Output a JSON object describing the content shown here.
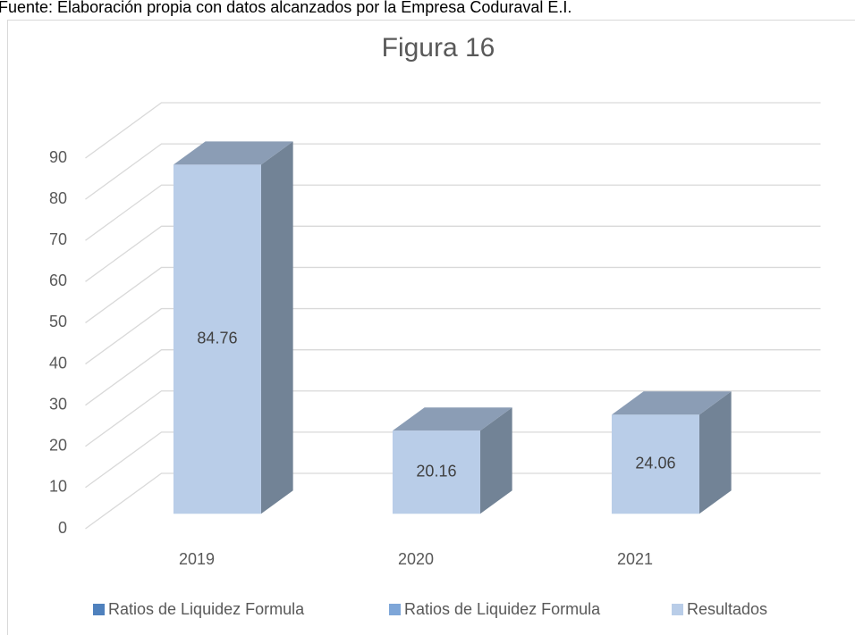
{
  "chart_data": {
    "type": "bar3d",
    "source": "Fuente: Elaboración propia con datos alcanzados por la Empresa Coduraval E.I.",
    "title": "Figura 16",
    "categories": [
      "2019",
      "2020",
      "2021"
    ],
    "series": [
      {
        "name": "Ratios de Liquidez Formula",
        "color": "#4f81bd",
        "values": [
          null,
          null,
          null
        ]
      },
      {
        "name": "Ratios de Liquidez Formula",
        "color": "#7ea6d8",
        "values": [
          null,
          null,
          null
        ]
      },
      {
        "name": "Resultados",
        "color": "#b9cde8",
        "values": [
          84.76,
          20.16,
          24.06
        ]
      }
    ],
    "ylim": [
      0,
      90
    ],
    "yticks": [
      0,
      10,
      20,
      30,
      40,
      50,
      60,
      70,
      80,
      90
    ],
    "grid": true,
    "legend": "bottom"
  }
}
